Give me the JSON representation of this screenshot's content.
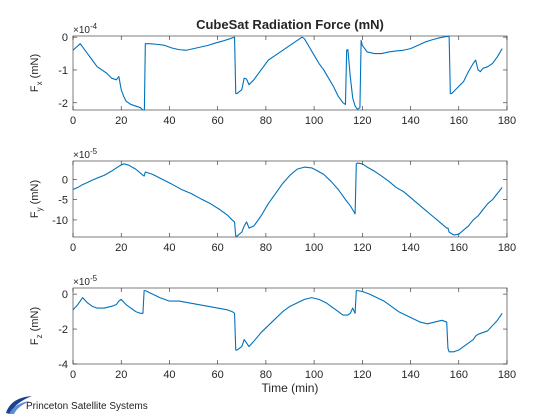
{
  "chart_data": [
    {
      "type": "line",
      "title": "CubeSat Radiation Force (mN)",
      "ylabel": "F_x (mN)",
      "ylabel_main": "F",
      "ylabel_sub": "x",
      "ylabel_unit": "(mN)",
      "exponent_label": "×10",
      "exponent_power": "-4",
      "xlim": [
        0,
        180
      ],
      "ylim": [
        -0.000222,
        3.5e-06
      ],
      "xticks": [
        0,
        20,
        40,
        60,
        80,
        100,
        120,
        140,
        160,
        180
      ],
      "xtick_labels": [
        "0",
        "20",
        "40",
        "60",
        "80",
        "100",
        "120",
        "140",
        "160",
        "180"
      ],
      "yticks": [
        -0.0002,
        -0.0001,
        0
      ],
      "ytick_labels": [
        "-2",
        "-1",
        "0"
      ],
      "grid": false,
      "series": [
        {
          "color": "#0072bd",
          "x": [
            0,
            3,
            6,
            8,
            10,
            12,
            14,
            16,
            18,
            19,
            20,
            21,
            22,
            24,
            26,
            28,
            29,
            29.6,
            30,
            32,
            35,
            38,
            41,
            44,
            47,
            50,
            53,
            56,
            59,
            62,
            65,
            67,
            67.5,
            68,
            70,
            71,
            72,
            73,
            75,
            78,
            81,
            84,
            87,
            90,
            93,
            95,
            96,
            98,
            100,
            102,
            104,
            106,
            108,
            110,
            112,
            113,
            113.5,
            114,
            115,
            116,
            117,
            118,
            119,
            119.5,
            120,
            122,
            125,
            128,
            131,
            134,
            137,
            140,
            143,
            146,
            149,
            152,
            155,
            156,
            156.5,
            157,
            158,
            160,
            162,
            164,
            166,
            167,
            168,
            169,
            170,
            172,
            174,
            176,
            178
          ],
          "y": [
            -4e-05,
            -2e-05,
            -5e-05,
            -7e-05,
            -9e-05,
            -0.0001,
            -0.00011,
            -0.000125,
            -0.00013,
            -0.00012,
            -0.00016,
            -0.00018,
            -0.000195,
            -0.000205,
            -0.00021,
            -0.000215,
            -0.000222,
            -0.000222,
            -2e-05,
            -2e-05,
            -2.2e-05,
            -2.5e-05,
            -3.3e-05,
            -3.8e-05,
            -4e-05,
            -3.5e-05,
            -3e-05,
            -2.5e-05,
            -1.8e-05,
            -1.2e-05,
            -5e-06,
            0,
            -0.000172,
            -0.000172,
            -0.00016,
            -0.000125,
            -0.000128,
            -0.000145,
            -0.00013,
            -0.0001,
            -7e-05,
            -5.5e-05,
            -4e-05,
            -2.5e-05,
            -1e-05,
            0,
            -5e-06,
            -3e-05,
            -5.5e-05,
            -8e-05,
            -0.0001,
            -0.000125,
            -0.00015,
            -0.00018,
            -0.0002,
            -0.000205,
            -4e-05,
            -3.8e-05,
            -0.00012,
            -0.000185,
            -0.00021,
            -0.00022,
            -0.000215,
            -1e-05,
            -2.5e-05,
            -4.5e-05,
            -5e-05,
            -5e-05,
            -4.5e-05,
            -4.2e-05,
            -4e-05,
            -3.5e-05,
            -2.5e-05,
            -1.5e-05,
            -8e-06,
            -2e-06,
            2e-06,
            2e-06,
            -0.000172,
            -0.000172,
            -0.000165,
            -0.00015,
            -0.000135,
            -0.000105,
            -8e-05,
            -7e-05,
            -0.0001,
            -0.000105,
            -9.5e-05,
            -9e-05,
            -8e-05,
            -6e-05,
            -3.5e-05
          ]
        }
      ]
    },
    {
      "type": "line",
      "title": "",
      "ylabel": "F_y (mN)",
      "ylabel_main": "F",
      "ylabel_sub": "y",
      "ylabel_unit": "(mN)",
      "exponent_label": "×10",
      "exponent_power": "-5",
      "xlim": [
        0,
        180
      ],
      "ylim": [
        -0.000142,
        4.5e-05
      ],
      "xticks": [
        0,
        20,
        40,
        60,
        80,
        100,
        120,
        140,
        160,
        180
      ],
      "xtick_labels": [
        "0",
        "20",
        "40",
        "60",
        "80",
        "100",
        "120",
        "140",
        "160",
        "180"
      ],
      "yticks": [
        -0.0001,
        -5e-05,
        0
      ],
      "ytick_labels": [
        "-10",
        "-5",
        "0"
      ],
      "grid": false,
      "series": [
        {
          "color": "#0072bd",
          "x": [
            0,
            2,
            4,
            6,
            8,
            10,
            13,
            16,
            19,
            21,
            23,
            26,
            29,
            29.5,
            30,
            33,
            37,
            41,
            45,
            49,
            53,
            57,
            61,
            64,
            66,
            67,
            67.5,
            68,
            70,
            71,
            72,
            73,
            75,
            78,
            81,
            84,
            87,
            90,
            93,
            96,
            99,
            101,
            104,
            107,
            110,
            113,
            115,
            116,
            117,
            117.5,
            118,
            120,
            122,
            125,
            128,
            131,
            134,
            137,
            140,
            143,
            146,
            149,
            152,
            154,
            155,
            155.5,
            156,
            158,
            160,
            162,
            164,
            166,
            168,
            170,
            172,
            174,
            176,
            178
          ],
          "y": [
            -2.5e-05,
            -2e-05,
            -1.3e-05,
            -8e-06,
            -2e-06,
            3e-06,
            1e-05,
            2e-05,
            3.2e-05,
            3.8e-05,
            3.5e-05,
            2.5e-05,
            1e-05,
            8e-06,
            1.8e-05,
            1.2e-05,
            0,
            -1.2e-05,
            -2.5e-05,
            -3.5e-05,
            -4.8e-05,
            -6e-05,
            -7.5e-05,
            -8.8e-05,
            -0.0001,
            -0.000105,
            -0.00014,
            -0.00014,
            -0.00013,
            -0.000115,
            -0.000105,
            -0.00012,
            -0.000115,
            -9e-05,
            -6e-05,
            -3.5e-05,
            -1e-05,
            1e-05,
            2.5e-05,
            3e-05,
            2.8e-05,
            2.2e-05,
            1.2e-05,
            -5e-06,
            -2.5e-05,
            -5e-05,
            -6.5e-05,
            -7.5e-05,
            -8.5e-05,
            3.8e-05,
            4e-05,
            3.8e-05,
            3e-05,
            2e-05,
            8e-06,
            -5e-06,
            -2e-05,
            -3e-05,
            -4.5e-05,
            -6e-05,
            -7.5e-05,
            -9e-05,
            -0.000105,
            -0.000115,
            -0.00012,
            -0.00012,
            -0.00013,
            -0.000137,
            -0.000135,
            -0.000125,
            -0.000115,
            -0.0001,
            -9e-05,
            -7.5e-05,
            -6e-05,
            -5e-05,
            -3.5e-05,
            -2e-05
          ]
        }
      ]
    },
    {
      "type": "line",
      "title": "",
      "xlabel": "Time (min)",
      "ylabel": "F_z (mN)",
      "ylabel_main": "F",
      "ylabel_sub": "z",
      "ylabel_unit": "(mN)",
      "exponent_label": "×10",
      "exponent_power": "-5",
      "xlim": [
        0,
        180
      ],
      "ylim": [
        -4e-05,
        3.5e-06
      ],
      "xticks": [
        0,
        20,
        40,
        60,
        80,
        100,
        120,
        140,
        160,
        180
      ],
      "xtick_labels": [
        "0",
        "20",
        "40",
        "60",
        "80",
        "100",
        "120",
        "140",
        "160",
        "180"
      ],
      "yticks": [
        -4e-05,
        -2e-05,
        0
      ],
      "ytick_labels": [
        "-4",
        "-2",
        "0"
      ],
      "grid": false,
      "series": [
        {
          "color": "#0072bd",
          "x": [
            0,
            2,
            4,
            6,
            8,
            10,
            13,
            16,
            18,
            19,
            20,
            22,
            24,
            26,
            28,
            29,
            29.5,
            30,
            33,
            36,
            40,
            44,
            48,
            52,
            56,
            60,
            64,
            66,
            67,
            67.5,
            68,
            70,
            71,
            72,
            73,
            75,
            78,
            81,
            84,
            87,
            90,
            93,
            96,
            99,
            102,
            105,
            108,
            110,
            112,
            114,
            115,
            116,
            117,
            117.5,
            118,
            120,
            123,
            126,
            129,
            132,
            135,
            138,
            141,
            144,
            147,
            150,
            153,
            155,
            155.5,
            156,
            158,
            160,
            162,
            164,
            166,
            167,
            168,
            170,
            172,
            174,
            176,
            178
          ],
          "y": [
            -9e-06,
            -6e-06,
            -2e-06,
            -5e-06,
            -7e-06,
            -8e-06,
            -8e-06,
            -7e-06,
            -6e-06,
            -4e-06,
            -3e-06,
            -6e-06,
            -8e-06,
            -1e-05,
            -1.1e-05,
            -1.1e-05,
            2e-06,
            2e-06,
            0,
            -2e-06,
            -4e-06,
            -4e-06,
            -5e-06,
            -6e-06,
            -7e-06,
            -8e-06,
            -9e-06,
            -1e-05,
            -1.1e-05,
            -3.2e-05,
            -3.2e-05,
            -3e-05,
            -2.6e-05,
            -2.8e-05,
            -3e-05,
            -2.7e-05,
            -2.2e-05,
            -1.8e-05,
            -1.4e-05,
            -1e-05,
            -7e-06,
            -5e-06,
            -3e-06,
            -2e-06,
            -3e-06,
            -5e-06,
            -8e-06,
            -1e-05,
            -1.2e-05,
            -1.2e-05,
            -1.1e-05,
            -8e-06,
            -1.1e-05,
            2e-06,
            2e-06,
            1.5e-06,
            0,
            -2e-06,
            -4e-06,
            -7e-06,
            -1e-05,
            -1.2e-05,
            -1.4e-05,
            -1.6e-05,
            -1.7e-05,
            -1.6e-05,
            -1.5e-05,
            -1.6e-05,
            -3.1e-05,
            -3.3e-05,
            -3.3e-05,
            -3.2e-05,
            -3e-05,
            -2.8e-05,
            -2.6e-05,
            -2.4e-05,
            -2.3e-05,
            -2.2e-05,
            -2.1e-05,
            -1.8e-05,
            -1.5e-05,
            -1.1e-05
          ]
        }
      ]
    }
  ],
  "logo": {
    "text": "Princeton Satellite Systems",
    "colors": {
      "swoosh_dark": "#1f3f8f",
      "swoosh_light": "#5a8fd6"
    }
  }
}
